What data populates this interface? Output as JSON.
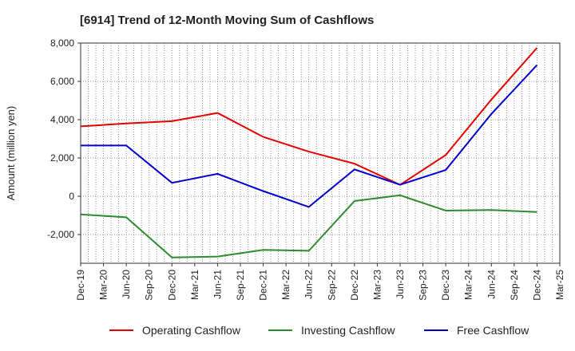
{
  "chart_data": {
    "type": "line",
    "title": "[6914]  Trend of 12-Month Moving Sum of Cashflows",
    "xlabel": "",
    "ylabel": "Amount (million yen)",
    "ylim": [
      -3500,
      8000
    ],
    "yticks": [
      -2000,
      0,
      2000,
      4000,
      6000,
      8000
    ],
    "ytick_labels": [
      "-2,000",
      "0",
      "2,000",
      "4,000",
      "6,000",
      "8,000"
    ],
    "xtick_labels": [
      "Dec-19",
      "Mar-20",
      "Jun-20",
      "Sep-20",
      "Dec-20",
      "Mar-21",
      "Jun-21",
      "Sep-21",
      "Dec-21",
      "Mar-22",
      "Jun-22",
      "Sep-22",
      "Dec-22",
      "Mar-23",
      "Jun-23",
      "Sep-23",
      "Dec-23",
      "Mar-24",
      "Jun-24",
      "Sep-24",
      "Dec-24",
      "Mar-25"
    ],
    "grid": true,
    "legend_position": "bottom",
    "series": [
      {
        "name": "Operating Cashflow",
        "color": "#e60000",
        "points": [
          [
            "Dec-19",
            3650
          ],
          [
            "Jun-20",
            3800
          ],
          [
            "Dec-20",
            3920
          ],
          [
            "Jun-21",
            4350
          ],
          [
            "Dec-21",
            3100
          ],
          [
            "Jun-22",
            2330
          ],
          [
            "Dec-22",
            1700
          ],
          [
            "Jun-23",
            600
          ],
          [
            "Dec-23",
            2150
          ],
          [
            "Jun-24",
            5050
          ],
          [
            "Dec-24",
            7750
          ]
        ]
      },
      {
        "name": "Investing Cashflow",
        "color": "#2e8b2e",
        "points": [
          [
            "Dec-19",
            -950
          ],
          [
            "Jun-20",
            -1100
          ],
          [
            "Dec-20",
            -3200
          ],
          [
            "Jun-21",
            -3150
          ],
          [
            "Dec-21",
            -2800
          ],
          [
            "Jun-22",
            -2850
          ],
          [
            "Dec-22",
            -250
          ],
          [
            "Jun-23",
            50
          ],
          [
            "Dec-23",
            -750
          ],
          [
            "Jun-24",
            -720
          ],
          [
            "Dec-24",
            -820
          ]
        ]
      },
      {
        "name": "Free Cashflow",
        "color": "#0000cc",
        "points": [
          [
            "Dec-19",
            2650
          ],
          [
            "Jun-20",
            2650
          ],
          [
            "Dec-20",
            700
          ],
          [
            "Jun-21",
            1170
          ],
          [
            "Dec-21",
            270
          ],
          [
            "Jun-22",
            -560
          ],
          [
            "Dec-22",
            1400
          ],
          [
            "Jun-23",
            600
          ],
          [
            "Dec-23",
            1370
          ],
          [
            "Jun-24",
            4300
          ],
          [
            "Dec-24",
            6850
          ]
        ]
      }
    ]
  }
}
